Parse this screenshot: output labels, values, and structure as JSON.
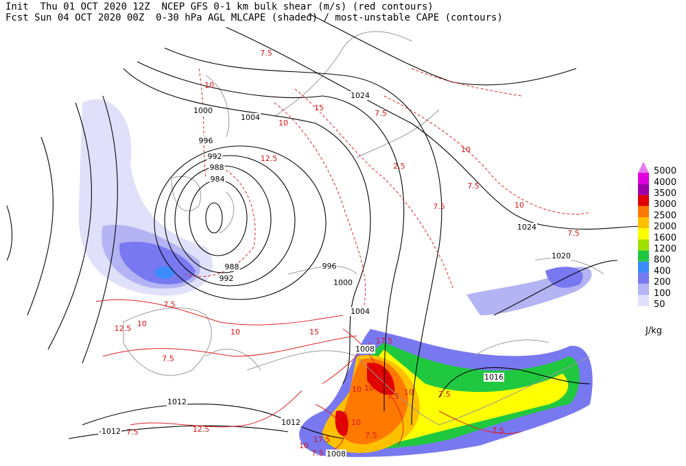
{
  "header": {
    "lines": [
      "Init  Thu 01 OCT 2020 12Z  NCEP GFS 0-1 km bulk shear (m/s) (red contours)",
      "Fcst Sun 04 OCT 2020 00Z  0-30 hPa AGL MLCAPE (shaded) / most-unstable CAPE (contours)"
    ]
  },
  "legend": {
    "unit": "J/kg",
    "levels": [
      {
        "label": "5000",
        "color": "#e878f0"
      },
      {
        "label": "4000",
        "color": "#e000e0"
      },
      {
        "label": "3500",
        "color": "#a000a8"
      },
      {
        "label": "3000",
        "color": "#e00000"
      },
      {
        "label": "2500",
        "color": "#ff7800"
      },
      {
        "label": "2000",
        "color": "#ffc000"
      },
      {
        "label": "1600",
        "color": "#ffff00"
      },
      {
        "label": "1200",
        "color": "#a0e000"
      },
      {
        "label": "800",
        "color": "#20c840"
      },
      {
        "label": "400",
        "color": "#3c8cff"
      },
      {
        "label": "200",
        "color": "#7878f0"
      },
      {
        "label": "100",
        "color": "#b4b4f4"
      },
      {
        "label": "50",
        "color": "#e0e0fa"
      }
    ]
  },
  "map": {
    "isobar_labels": [
      "1000",
      "1004",
      "996",
      "992",
      "988",
      "984",
      "988",
      "992",
      "996",
      "1000",
      "1004",
      "1008",
      "1024",
      "1024",
      "1020",
      "1016",
      "1012",
      "1012",
      "-1012",
      "1008"
    ],
    "shear_labels": [
      "7.5",
      "10",
      "10",
      "12.5",
      "15",
      "7.5",
      "10",
      "12.5",
      "7.5",
      "10",
      "15",
      "17.5",
      "10",
      "10",
      "7.5",
      "10",
      "7.5",
      "10",
      "15",
      "17.5",
      "10",
      "7.5",
      "7.5",
      "7.5",
      "12.5",
      "7.5",
      "10",
      "7.5",
      "7.5",
      "7.5",
      "10",
      "7.5",
      "2.5"
    ]
  }
}
